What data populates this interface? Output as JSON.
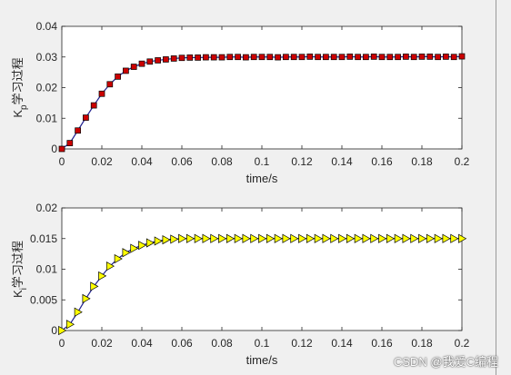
{
  "colors": {
    "background": "#f0f0f0",
    "plot_background": "#ffffff",
    "axes": "#262626",
    "top_line": "#1f1f8f",
    "top_marker_fill": "#cc0000",
    "bottom_line": "#1f1f8f",
    "bottom_marker_fill": "#ffff00"
  },
  "chart_data": [
    {
      "type": "line",
      "xlabel": "time/s",
      "ylabel": "K",
      "ylabel_sub": "p",
      "ylabel_rest": "学习过程",
      "xlim": [
        0,
        0.2
      ],
      "ylim": [
        0,
        0.04
      ],
      "xticks": [
        0,
        0.02,
        0.04,
        0.06,
        0.08,
        0.1,
        0.12,
        0.14,
        0.16,
        0.18,
        0.2
      ],
      "xtick_labels": [
        "0",
        "0.02",
        "0.04",
        "0.06",
        "0.08",
        "0.1",
        "0.12",
        "0.14",
        "0.16",
        "0.18",
        "0.2"
      ],
      "yticks": [
        0,
        0.01,
        0.02,
        0.03,
        0.04
      ],
      "ytick_labels": [
        "0",
        "0.01",
        "0.02",
        "0.03",
        "0.04"
      ],
      "grid": false,
      "marker": "square",
      "series": [
        {
          "x": [
            0,
            0.004,
            0.008,
            0.012,
            0.016,
            0.02,
            0.024,
            0.028,
            0.032,
            0.036,
            0.04,
            0.044,
            0.048,
            0.052,
            0.056,
            0.06,
            0.064,
            0.068,
            0.072,
            0.076,
            0.08,
            0.084,
            0.088,
            0.092,
            0.096,
            0.1,
            0.104,
            0.108,
            0.112,
            0.116,
            0.12,
            0.124,
            0.128,
            0.132,
            0.136,
            0.14,
            0.144,
            0.148,
            0.152,
            0.156,
            0.16,
            0.164,
            0.168,
            0.172,
            0.176,
            0.18,
            0.184,
            0.188,
            0.192,
            0.196,
            0.2
          ],
          "y": [
            0,
            0.0019,
            0.006,
            0.0102,
            0.0142,
            0.018,
            0.0211,
            0.0236,
            0.0255,
            0.0268,
            0.0278,
            0.0285,
            0.0289,
            0.0292,
            0.0295,
            0.0297,
            0.0298,
            0.0298,
            0.0299,
            0.0299,
            0.0299,
            0.03,
            0.03,
            0.0299,
            0.03,
            0.03,
            0.03,
            0.0299,
            0.03,
            0.03,
            0.03,
            0.0301,
            0.03,
            0.03,
            0.03,
            0.03,
            0.0301,
            0.03,
            0.03,
            0.0301,
            0.03,
            0.03,
            0.03,
            0.0301,
            0.03,
            0.0301,
            0.0301,
            0.03,
            0.0301,
            0.03,
            0.0302
          ]
        }
      ]
    },
    {
      "type": "line",
      "xlabel": "time/s",
      "ylabel": "K",
      "ylabel_sub": "i",
      "ylabel_rest": "学习过程",
      "xlim": [
        0,
        0.2
      ],
      "ylim": [
        0,
        0.02
      ],
      "xticks": [
        0,
        0.02,
        0.04,
        0.06,
        0.08,
        0.1,
        0.12,
        0.14,
        0.16,
        0.18,
        0.2
      ],
      "xtick_labels": [
        "0",
        "0.02",
        "0.04",
        "0.06",
        "0.08",
        "0.1",
        "0.12",
        "0.14",
        "0.16",
        "0.18",
        "0.2"
      ],
      "yticks": [
        0,
        0.005,
        0.01,
        0.015,
        0.02
      ],
      "ytick_labels": [
        "0",
        "0.005",
        "0.01",
        "0.015",
        "0.02"
      ],
      "grid": false,
      "marker": "triangle-right",
      "series": [
        {
          "x": [
            0,
            0.004,
            0.008,
            0.012,
            0.016,
            0.02,
            0.024,
            0.028,
            0.032,
            0.036,
            0.04,
            0.044,
            0.048,
            0.052,
            0.056,
            0.06,
            0.064,
            0.068,
            0.072,
            0.076,
            0.08,
            0.084,
            0.088,
            0.092,
            0.096,
            0.1,
            0.104,
            0.108,
            0.112,
            0.116,
            0.12,
            0.124,
            0.128,
            0.132,
            0.136,
            0.14,
            0.144,
            0.148,
            0.152,
            0.156,
            0.16,
            0.164,
            0.168,
            0.172,
            0.176,
            0.18,
            0.184,
            0.188,
            0.192,
            0.196,
            0.2
          ],
          "y": [
            0,
            0.001,
            0.003,
            0.0052,
            0.0072,
            0.0089,
            0.0105,
            0.0117,
            0.0127,
            0.0134,
            0.0139,
            0.0143,
            0.0146,
            0.0148,
            0.0149,
            0.015,
            0.015,
            0.015,
            0.015,
            0.015,
            0.015,
            0.015,
            0.015,
            0.015,
            0.015,
            0.015,
            0.015,
            0.015,
            0.015,
            0.015,
            0.015,
            0.015,
            0.015,
            0.015,
            0.015,
            0.015,
            0.015,
            0.015,
            0.015,
            0.015,
            0.015,
            0.015,
            0.015,
            0.015,
            0.015,
            0.015,
            0.015,
            0.015,
            0.015,
            0.015,
            0.015
          ]
        }
      ]
    }
  ],
  "watermark": "CSDN @我爱C编程"
}
